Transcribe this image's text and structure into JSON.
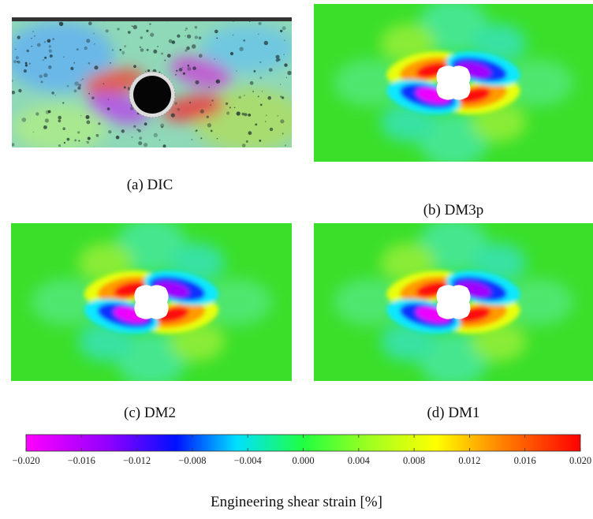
{
  "panels": [
    {
      "caption": "(a) DIC"
    },
    {
      "caption": "(b) DM3p"
    },
    {
      "caption": "(c) DM2"
    },
    {
      "caption": "(d) DM1"
    }
  ],
  "colorbar": {
    "lim": [
      -0.02,
      0.02
    ],
    "ticks": [
      {
        "value": -0.02,
        "label": "−0.020"
      },
      {
        "value": -0.016,
        "label": "−0.016"
      },
      {
        "value": -0.012,
        "label": "−0.012"
      },
      {
        "value": -0.008,
        "label": "−0.008"
      },
      {
        "value": -0.004,
        "label": "−0.004"
      },
      {
        "value": 0,
        "label": "0.000"
      },
      {
        "value": 0.004,
        "label": "0.004"
      },
      {
        "value": 0.008,
        "label": "0.008"
      },
      {
        "value": 0.012,
        "label": "0.012"
      },
      {
        "value": 0.016,
        "label": "0.016"
      },
      {
        "value": 0.02,
        "label": "0.020"
      }
    ],
    "label": "Engineering shear strain [%]"
  }
}
